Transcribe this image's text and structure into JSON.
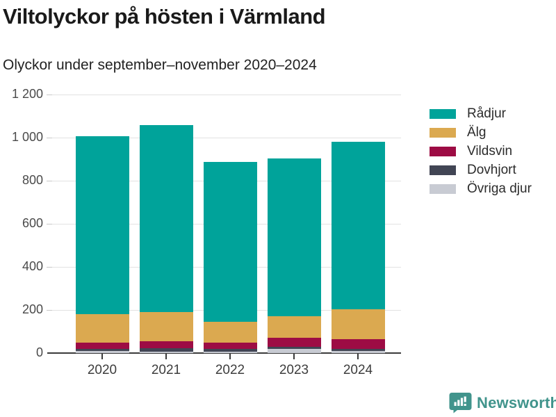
{
  "header": {
    "title": "Viltolyckor på hösten i Värmland",
    "subtitle": "Olyckor under september–november 2020–2024"
  },
  "chart_data": {
    "type": "bar",
    "stacked": true,
    "title": "Viltolyckor på hösten i Värmland",
    "subtitle": "Olyckor under september–november 2020–2024",
    "categories": [
      "2020",
      "2021",
      "2022",
      "2023",
      "2024"
    ],
    "series": [
      {
        "name": "Rådjur",
        "color": "#00A39A",
        "values": [
          824,
          869,
          742,
          731,
          777
        ]
      },
      {
        "name": "Älg",
        "color": "#DBA950",
        "values": [
          133,
          133,
          97,
          102,
          140
        ]
      },
      {
        "name": "Vildsvin",
        "color": "#9D0C44",
        "values": [
          28,
          33,
          29,
          42,
          45
        ]
      },
      {
        "name": "Dovhjort",
        "color": "#414554",
        "values": [
          10,
          15,
          11,
          10,
          10
        ]
      },
      {
        "name": "Övriga djur",
        "color": "#C8CBD3",
        "values": [
          10,
          8,
          8,
          18,
          9
        ]
      }
    ],
    "stack_order_bottom_to_top": [
      "Övriga djur",
      "Dovhjort",
      "Vildsvin",
      "Älg",
      "Rådjur"
    ],
    "totals": [
      1005,
      1058,
      887,
      903,
      981
    ],
    "xlabel": "",
    "ylabel": "",
    "ylim": [
      0,
      1200
    ],
    "yticks": [
      0,
      200,
      400,
      600,
      800,
      1000,
      1200
    ],
    "ytick_labels": [
      "0",
      "200",
      "400",
      "600",
      "800",
      "1 000",
      "1 200"
    ],
    "grid": true,
    "legend_position": "right"
  },
  "footer": {
    "brand": "Newsworthy",
    "brand_color": "#41948C"
  }
}
